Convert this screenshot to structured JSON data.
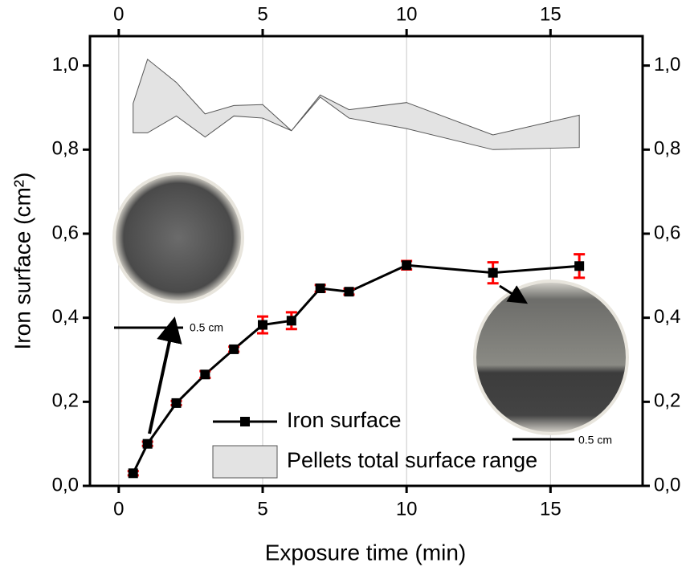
{
  "chart_data": {
    "type": "line",
    "x_label": "Exposure time (min)",
    "y_label": "Iron surface (cm²)",
    "xlim": [
      -1,
      18.2
    ],
    "ylim": [
      0,
      1.07
    ],
    "xticks": [
      0,
      5,
      10,
      15
    ],
    "yticks": [
      {
        "value": 0,
        "label": "0,0"
      },
      {
        "value": 0.2,
        "label": "0,2"
      },
      {
        "value": 0.4,
        "label": "0,4"
      },
      {
        "value": 0.6,
        "label": "0,6"
      },
      {
        "value": 0.8,
        "label": "0,8"
      },
      {
        "value": 1.0,
        "label": "1,0"
      }
    ],
    "grid": true,
    "legend": "bottom",
    "series": [
      {
        "name": "Iron surface",
        "color": "#000000",
        "error_color": "#ff0000",
        "x": [
          0.5,
          1,
          2,
          3,
          4,
          5,
          6,
          7,
          8,
          10,
          13,
          16
        ],
        "values": [
          0.03,
          0.1,
          0.197,
          0.265,
          0.325,
          0.383,
          0.393,
          0.47,
          0.462,
          0.525,
          0.507,
          0.523
        ],
        "errors": [
          0.005,
          0.005,
          0.005,
          0.008,
          0.006,
          0.02,
          0.02,
          0.008,
          0.007,
          0.01,
          0.025,
          0.028
        ]
      },
      {
        "name": "Pellets total surface range",
        "color": "#e3e3e3",
        "x": [
          0.5,
          1,
          2,
          3,
          4,
          5,
          6,
          7,
          8,
          10,
          13,
          16
        ],
        "upper": [
          0.91,
          1.015,
          0.96,
          0.885,
          0.905,
          0.907,
          0.845,
          0.93,
          0.895,
          0.912,
          0.835,
          0.882
        ],
        "lower": [
          0.84,
          0.84,
          0.88,
          0.83,
          0.88,
          0.875,
          0.845,
          0.925,
          0.875,
          0.85,
          0.8,
          0.805
        ]
      }
    ],
    "annotations": [
      "0.5 cm",
      "0.5 cm"
    ]
  }
}
